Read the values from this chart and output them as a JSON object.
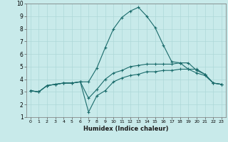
{
  "xlabel": "Humidex (Indice chaleur)",
  "xlim": [
    -0.5,
    23.5
  ],
  "ylim": [
    1,
    10
  ],
  "xticks": [
    0,
    1,
    2,
    3,
    4,
    5,
    6,
    7,
    8,
    9,
    10,
    11,
    12,
    13,
    14,
    15,
    16,
    17,
    18,
    19,
    20,
    21,
    22,
    23
  ],
  "yticks": [
    1,
    2,
    3,
    4,
    5,
    6,
    7,
    8,
    9,
    10
  ],
  "bg_color": "#c8eaea",
  "grid_color": "#add8d8",
  "line_color": "#1a6b6b",
  "line1_x": [
    0,
    1,
    2,
    3,
    4,
    5,
    6,
    7,
    8,
    9,
    10,
    11,
    12,
    13,
    14,
    15,
    16,
    17,
    18,
    19,
    20,
    21,
    22,
    23
  ],
  "line1_y": [
    3.1,
    3.0,
    3.5,
    3.6,
    3.7,
    3.7,
    3.8,
    1.4,
    2.7,
    3.1,
    3.8,
    4.1,
    4.3,
    4.4,
    4.6,
    4.6,
    4.7,
    4.7,
    4.8,
    4.8,
    4.8,
    4.4,
    3.7,
    3.6
  ],
  "line2_x": [
    0,
    1,
    2,
    3,
    4,
    5,
    6,
    7,
    8,
    9,
    10,
    11,
    12,
    13,
    14,
    15,
    16,
    17,
    18,
    19,
    20,
    21,
    22,
    23
  ],
  "line2_y": [
    3.1,
    3.0,
    3.5,
    3.6,
    3.7,
    3.7,
    3.8,
    3.8,
    4.9,
    6.5,
    8.0,
    8.9,
    9.4,
    9.7,
    9.0,
    8.1,
    6.7,
    5.4,
    5.3,
    4.8,
    4.5,
    4.3,
    3.7,
    3.6
  ],
  "line3_x": [
    0,
    1,
    2,
    3,
    4,
    5,
    6,
    7,
    8,
    9,
    10,
    11,
    12,
    13,
    14,
    15,
    16,
    17,
    18,
    19,
    20,
    21,
    22,
    23
  ],
  "line3_y": [
    3.1,
    3.0,
    3.5,
    3.6,
    3.7,
    3.7,
    3.8,
    2.5,
    3.2,
    4.0,
    4.5,
    4.7,
    5.0,
    5.1,
    5.2,
    5.2,
    5.2,
    5.2,
    5.3,
    5.3,
    4.7,
    4.4,
    3.7,
    3.6
  ]
}
